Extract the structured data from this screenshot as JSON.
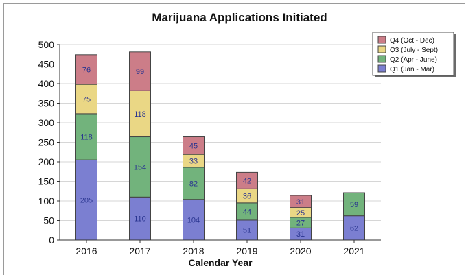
{
  "chart_data": {
    "type": "bar",
    "stacked": true,
    "title": "Marijuana Applications Initiated",
    "xlabel": "Calendar Year",
    "ylabel": "",
    "ylim": [
      0,
      500
    ],
    "yticks": [
      0,
      50,
      100,
      150,
      200,
      250,
      300,
      350,
      400,
      450,
      500
    ],
    "grid": true,
    "legend_position": "top-right",
    "categories": [
      "2016",
      "2017",
      "2018",
      "2019",
      "2020",
      "2021"
    ],
    "series": [
      {
        "name": "Q1 (Jan - Mar)",
        "color": "#7b7fd1",
        "values": [
          205,
          110,
          104,
          51,
          31,
          62
        ]
      },
      {
        "name": "Q2 (Apr - June)",
        "color": "#72b37c",
        "values": [
          118,
          154,
          82,
          44,
          27,
          59
        ]
      },
      {
        "name": "Q3 (July - Sept)",
        "color": "#ead785",
        "values": [
          75,
          118,
          33,
          36,
          25,
          null
        ]
      },
      {
        "name": "Q4 (Oct - Dec)",
        "color": "#cc7d88",
        "values": [
          76,
          99,
          45,
          42,
          31,
          null
        ]
      }
    ],
    "legend_order": [
      3,
      2,
      1,
      0
    ]
  }
}
